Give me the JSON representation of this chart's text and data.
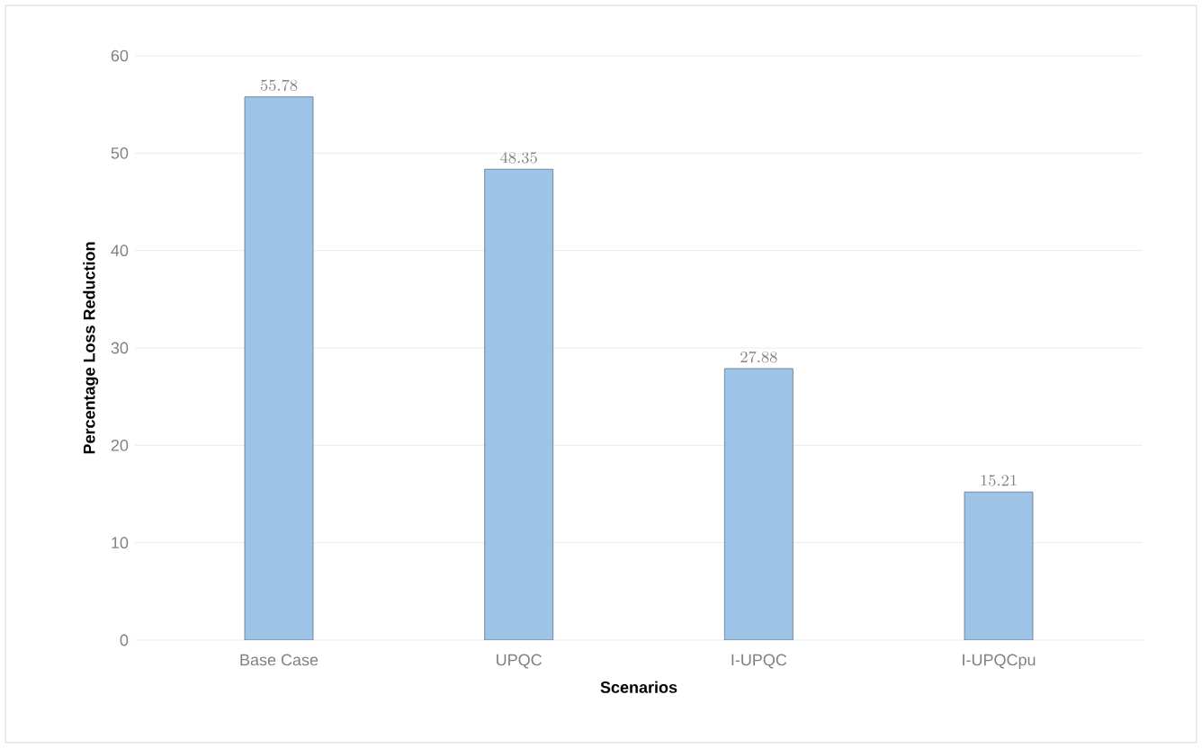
{
  "chart_data": {
    "type": "bar",
    "xlabel": "Scenarios",
    "ylabel": "Percentage Loss Reduction",
    "categories": [
      "Base Case",
      "UPQC",
      "I-UPQC",
      "I-UPQCpu"
    ],
    "values": [
      55.78,
      48.35,
      27.88,
      15.21
    ],
    "color": "#9dc3e6",
    "ylim": [
      0,
      60
    ],
    "yticks": [
      0,
      10,
      20,
      30,
      40,
      50,
      60
    ],
    "grid": "y",
    "data_labels": true
  }
}
